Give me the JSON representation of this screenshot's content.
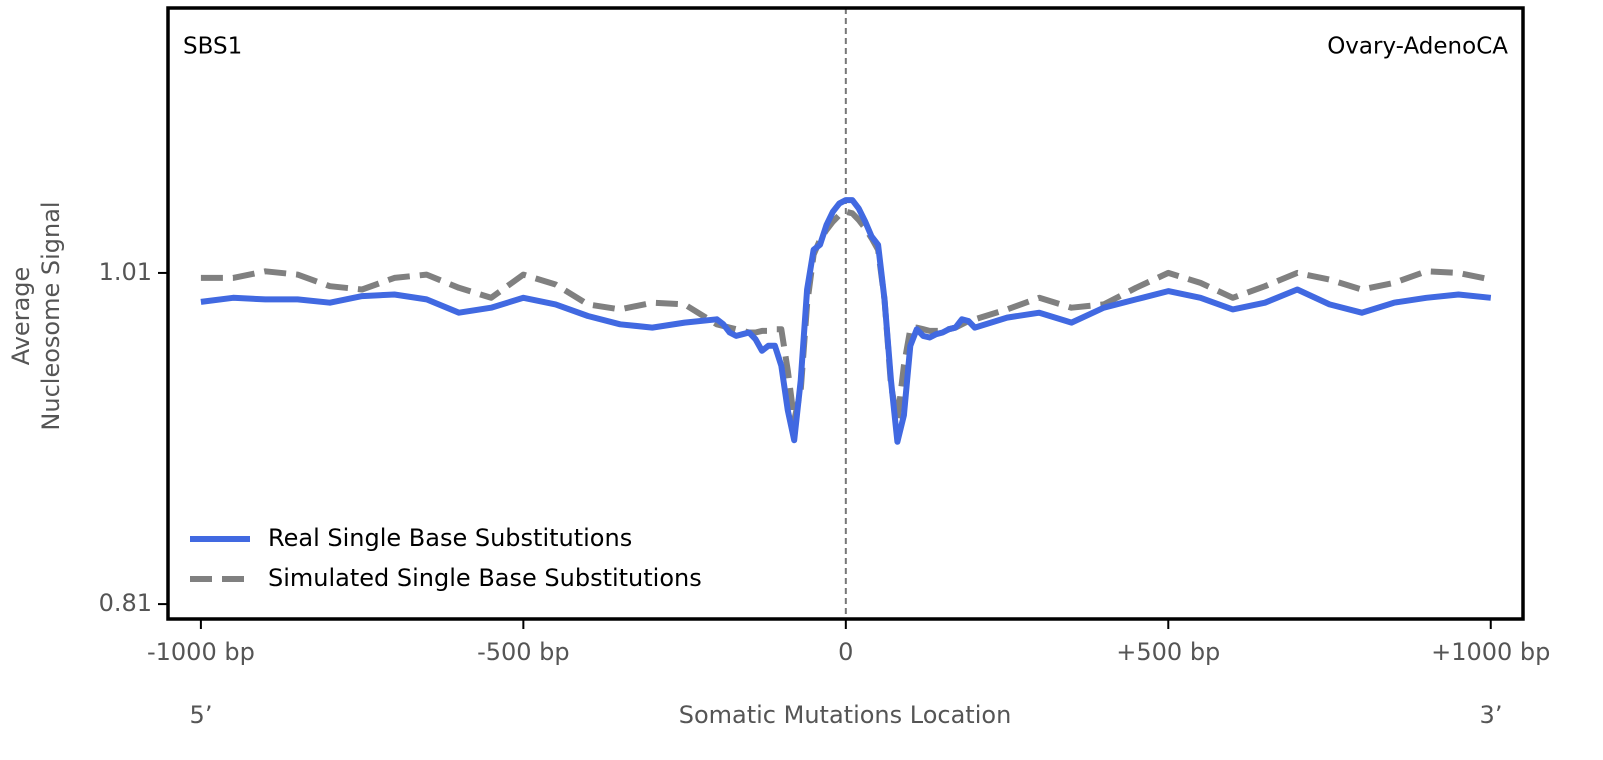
{
  "chart_data": {
    "type": "line",
    "annotations": [
      "SBS1",
      "Ovary-AdenoCA"
    ],
    "x_label": "Somatic Mutations Location",
    "x_end_labels": [
      "5’",
      "3’"
    ],
    "y_label": [
      "Average",
      "Nucleosome Signal"
    ],
    "x": [
      -1000,
      -950,
      -900,
      -850,
      -800,
      -750,
      -700,
      -650,
      -600,
      -550,
      -500,
      -450,
      -400,
      -350,
      -300,
      -250,
      -200,
      -190,
      -180,
      -170,
      -160,
      -150,
      -140,
      -130,
      -120,
      -110,
      -100,
      -90,
      -80,
      -70,
      -60,
      -50,
      -40,
      -30,
      -20,
      -10,
      0,
      10,
      20,
      30,
      40,
      50,
      60,
      70,
      80,
      90,
      100,
      110,
      120,
      130,
      140,
      150,
      160,
      170,
      180,
      190,
      200,
      250,
      300,
      350,
      400,
      450,
      500,
      550,
      600,
      650,
      700,
      750,
      800,
      850,
      900,
      950,
      1000
    ],
    "series": [
      {
        "name": "Real Single Base Substitutions",
        "color": "#4169e1",
        "dash": false,
        "values": [
          0.9925,
          0.995,
          0.994,
          0.994,
          0.992,
          0.996,
          0.997,
          0.994,
          0.986,
          0.989,
          0.995,
          0.991,
          0.984,
          0.979,
          0.977,
          0.98,
          0.982,
          0.979,
          0.974,
          0.972,
          0.973,
          0.974,
          0.97,
          0.963,
          0.966,
          0.966,
          0.954,
          0.927,
          0.909,
          0.945,
          1.0,
          1.024,
          1.027,
          1.039,
          1.047,
          1.052,
          1.054,
          1.054,
          1.049,
          1.041,
          1.032,
          1.027,
          0.994,
          0.945,
          0.908,
          0.924,
          0.966,
          0.976,
          0.972,
          0.971,
          0.973,
          0.974,
          0.976,
          0.977,
          0.982,
          0.981,
          0.977,
          0.983,
          0.986,
          0.98,
          0.989,
          0.994,
          0.999,
          0.995,
          0.988,
          0.992,
          1.0,
          0.991,
          0.986,
          0.992,
          0.995,
          0.997,
          0.995
        ]
      },
      {
        "name": "Simulated Single Base Substitutions",
        "color": "#808080",
        "dash": true,
        "values": [
          1.007,
          1.007,
          1.011,
          1.009,
          1.002,
          1.0,
          1.007,
          1.009,
          1.001,
          0.995,
          1.009,
          1.003,
          0.991,
          0.988,
          0.992,
          0.991,
          0.979,
          0.978,
          0.977,
          0.976,
          0.975,
          0.974,
          0.974,
          0.975,
          0.975,
          0.976,
          0.976,
          0.951,
          0.921,
          0.939,
          0.991,
          1.021,
          1.03,
          1.036,
          1.041,
          1.045,
          1.047,
          1.046,
          1.042,
          1.037,
          1.031,
          1.024,
          0.994,
          0.942,
          0.921,
          0.954,
          0.976,
          0.977,
          0.976,
          0.975,
          0.975,
          0.975,
          0.976,
          0.977,
          0.979,
          0.981,
          0.982,
          0.988,
          0.995,
          0.989,
          0.991,
          1.001,
          1.01,
          1.004,
          0.995,
          1.002,
          1.01,
          1.006,
          1.0,
          1.004,
          1.011,
          1.01,
          1.006
        ]
      }
    ],
    "vline_x": 0,
    "xlim": [
      -1051,
      1050
    ],
    "ylim": [
      0.801,
      1.17
    ],
    "xticks": [
      {
        "value": -1000,
        "label": "-1000 bp"
      },
      {
        "value": -500,
        "label": "-500 bp"
      },
      0,
      {
        "value": 500,
        "label": "+500 bp"
      },
      {
        "value": 1000,
        "label": "+1000 bp"
      }
    ],
    "yticks": [
      0.81,
      1.01
    ],
    "legend": "lower left"
  }
}
